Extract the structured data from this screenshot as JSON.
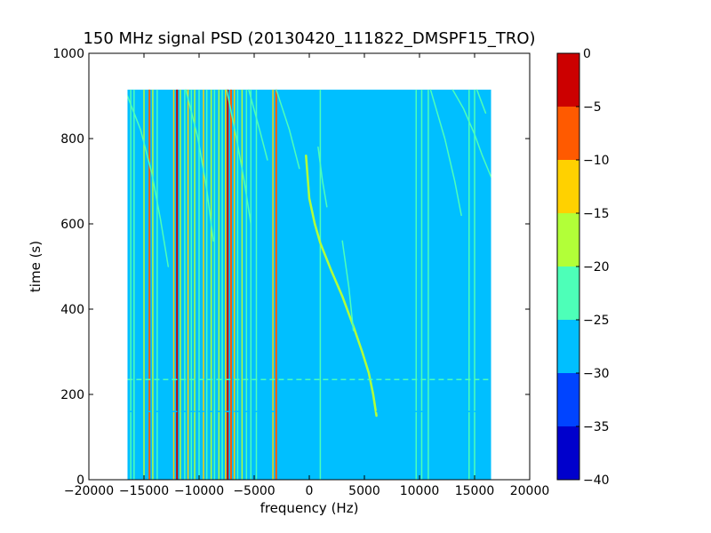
{
  "chart_data": {
    "type": "heatmap",
    "title": "150 MHz signal PSD (20130420_111822_DMSPF15_TRO)",
    "xlabel": "frequency (Hz)",
    "ylabel": "time (s)",
    "xlim": [
      -20000,
      20000
    ],
    "ylim": [
      0,
      1000
    ],
    "xticks": [
      -20000,
      -15000,
      -10000,
      -5000,
      0,
      5000,
      10000,
      15000,
      20000
    ],
    "xtick_labels": [
      "−20000",
      "−15000",
      "−10000",
      "−5000",
      "0",
      "5000",
      "10000",
      "15000",
      "20000"
    ],
    "yticks": [
      0,
      200,
      400,
      600,
      800,
      1000
    ],
    "ytick_labels": [
      "0",
      "200",
      "400",
      "600",
      "800",
      "1000"
    ],
    "data_extent": {
      "x": [
        -16500,
        16500
      ],
      "y": [
        0,
        915
      ]
    },
    "background_level": -27.5,
    "colorbar": {
      "levels": [
        -40,
        -35,
        -30,
        -25,
        -20,
        -15,
        -10,
        -5,
        0
      ],
      "tick_labels": [
        "−40",
        "−35",
        "−30",
        "−25",
        "−20",
        "−15",
        "−10",
        "−5",
        "0"
      ],
      "colors": [
        "#0000cc",
        "#0044ff",
        "#00bfff",
        "#4dffb8",
        "#b2ff38",
        "#ffd100",
        "#ff5a00",
        "#cc0000"
      ]
    },
    "vertical_lines": [
      {
        "x": -16200,
        "level": -22.5
      },
      {
        "x": -15900,
        "level": -22.5
      },
      {
        "x": -15000,
        "level": -17.5
      },
      {
        "x": -14500,
        "level": -7.5
      },
      {
        "x": -14200,
        "level": -17.5
      },
      {
        "x": -13800,
        "level": -22.5
      },
      {
        "x": -12300,
        "level": -12.5
      },
      {
        "x": -12000,
        "level": -2.5
      },
      {
        "x": -11700,
        "level": -17.5
      },
      {
        "x": -11300,
        "level": -22.5
      },
      {
        "x": -11000,
        "level": -12.5
      },
      {
        "x": -10700,
        "level": -22.5
      },
      {
        "x": -10400,
        "level": -17.5
      },
      {
        "x": -10000,
        "level": -22.5
      },
      {
        "x": -9600,
        "level": -12.5
      },
      {
        "x": -9300,
        "level": -22.5
      },
      {
        "x": -8900,
        "level": -17.5
      },
      {
        "x": -8600,
        "level": -22.5
      },
      {
        "x": -8200,
        "level": -17.5
      },
      {
        "x": -7900,
        "level": -22.5
      },
      {
        "x": -7600,
        "level": -12.5
      },
      {
        "x": -7400,
        "level": -2.5
      },
      {
        "x": -7100,
        "level": -7.5
      },
      {
        "x": -6800,
        "level": -12.5
      },
      {
        "x": -6500,
        "level": -22.5
      },
      {
        "x": -6100,
        "level": -17.5
      },
      {
        "x": -5700,
        "level": -22.5
      },
      {
        "x": -5300,
        "level": -22.5
      },
      {
        "x": -4800,
        "level": -22.5
      },
      {
        "x": -3300,
        "level": -12.5
      },
      {
        "x": -3000,
        "level": -7.5
      },
      {
        "x": 1000,
        "level": -22.5
      },
      {
        "x": 9700,
        "level": -22.5
      },
      {
        "x": 10200,
        "level": -22.5
      },
      {
        "x": 10800,
        "level": -22.5
      },
      {
        "x": 14500,
        "level": -22.5
      },
      {
        "x": 15000,
        "level": -22.5
      }
    ],
    "traces": [
      {
        "level": -17.5,
        "points": [
          [
            -300,
            760
          ],
          [
            0,
            660
          ],
          [
            500,
            600
          ],
          [
            1000,
            555
          ],
          [
            2000,
            490
          ],
          [
            3000,
            430
          ],
          [
            4000,
            360
          ],
          [
            4800,
            300
          ],
          [
            5400,
            250
          ],
          [
            5800,
            200
          ],
          [
            6100,
            150
          ]
        ]
      },
      {
        "level": -22.5,
        "points": [
          [
            -16500,
            900
          ],
          [
            -15300,
            820
          ],
          [
            -14300,
            720
          ],
          [
            -13500,
            610
          ],
          [
            -12800,
            500
          ]
        ]
      },
      {
        "level": -22.5,
        "points": [
          [
            -11200,
            915
          ],
          [
            -10100,
            800
          ],
          [
            -9300,
            680
          ],
          [
            -8700,
            560
          ]
        ]
      },
      {
        "level": -22.5,
        "points": [
          [
            -7500,
            915
          ],
          [
            -6600,
            800
          ],
          [
            -5900,
            700
          ],
          [
            -5300,
            600
          ]
        ]
      },
      {
        "level": -22.5,
        "points": [
          [
            -5500,
            915
          ],
          [
            -4500,
            820
          ],
          [
            -3800,
            750
          ]
        ]
      },
      {
        "level": -22.5,
        "points": [
          [
            -3000,
            915
          ],
          [
            -1800,
            820
          ],
          [
            -900,
            730
          ]
        ]
      },
      {
        "level": -22.5,
        "points": [
          [
            800,
            780
          ],
          [
            1200,
            700
          ],
          [
            1600,
            640
          ]
        ]
      },
      {
        "level": -22.5,
        "points": [
          [
            3000,
            560
          ],
          [
            3600,
            450
          ],
          [
            4000,
            350
          ]
        ]
      },
      {
        "level": -22.5,
        "points": [
          [
            11000,
            915
          ],
          [
            12300,
            800
          ],
          [
            13200,
            700
          ],
          [
            13800,
            620
          ]
        ]
      },
      {
        "level": -22.5,
        "points": [
          [
            13000,
            915
          ],
          [
            14000,
            870
          ],
          [
            15000,
            810
          ],
          [
            15700,
            760
          ],
          [
            16500,
            710
          ]
        ]
      },
      {
        "level": -22.5,
        "points": [
          [
            15200,
            915
          ],
          [
            16000,
            860
          ]
        ]
      }
    ],
    "horizontal_lines": [
      {
        "y": 235,
        "level": -22.5
      },
      {
        "y": 160,
        "level": -25
      }
    ]
  }
}
